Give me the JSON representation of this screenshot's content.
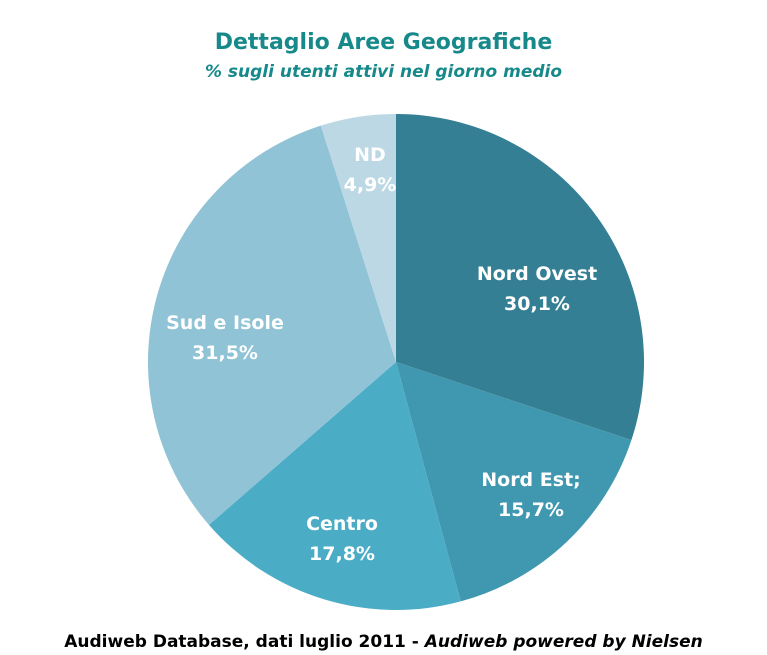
{
  "chart_data": {
    "type": "pie",
    "title": "Dettaglio Aree Geografiche",
    "subtitle": "% sugli utenti attivi nel giorno medio",
    "slices": [
      {
        "label": "Nord Ovest",
        "value_text": "30,1%",
        "value": 30.1,
        "color": "#347f94"
      },
      {
        "label": "Nord Est;",
        "value_text": "15,7%",
        "value": 15.7,
        "color": "#3f97b0"
      },
      {
        "label": "Centro",
        "value_text": "17,8%",
        "value": 17.8,
        "color": "#4bacc6"
      },
      {
        "label": "Sud e Isole",
        "value_text": "31,5%",
        "value": 31.5,
        "color": "#8fc3d5"
      },
      {
        "label": "ND",
        "value_text": "4,9%",
        "value": 4.9,
        "color": "#bcd8e4"
      }
    ]
  },
  "footer": {
    "source_text": "Audiweb Database, dati luglio 2011 - ",
    "source_italic": "Audiweb powered by Nielsen"
  }
}
